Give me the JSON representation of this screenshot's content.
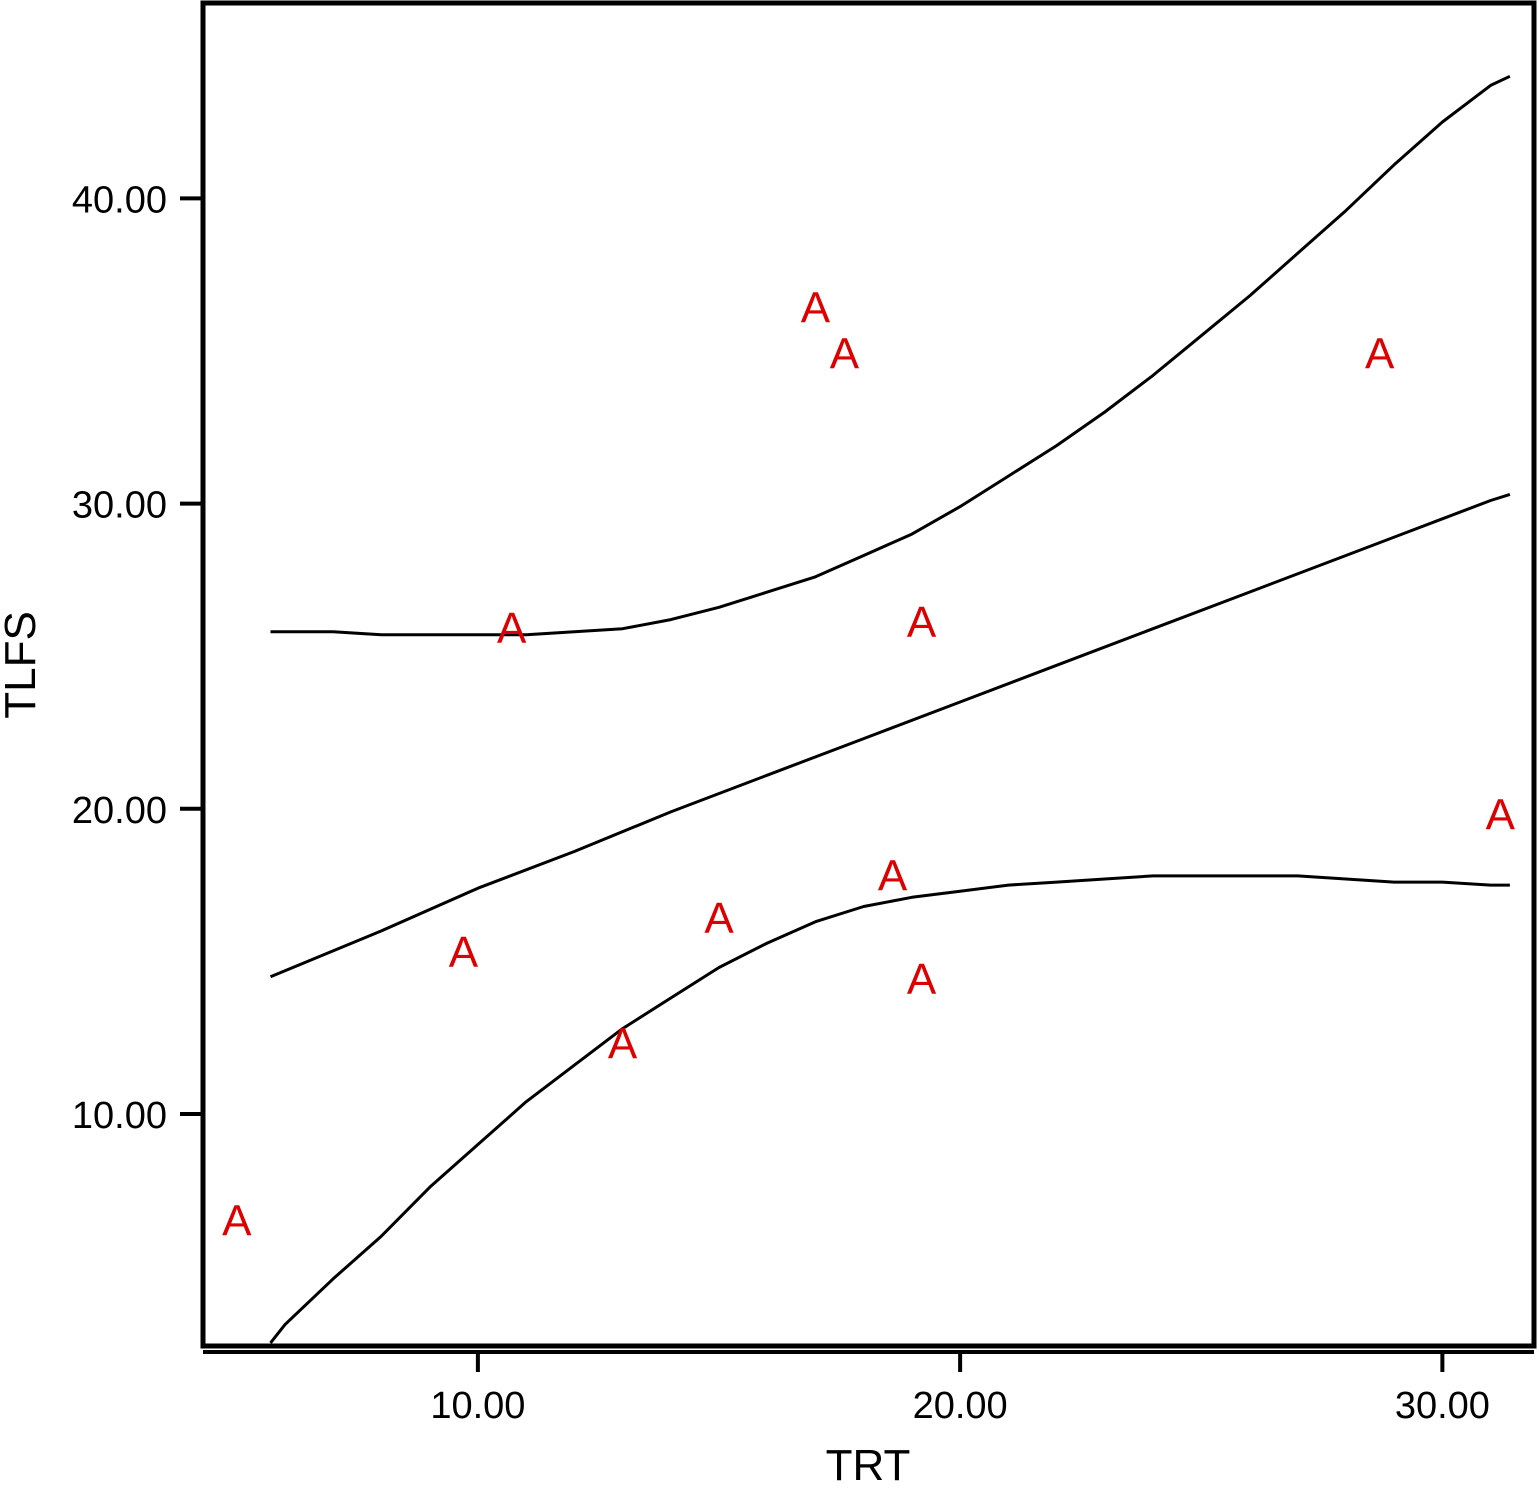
{
  "chart_data": {
    "type": "scatter",
    "xlabel": "TRT",
    "ylabel": "TLFS",
    "xlim": [
      4.3,
      31.9
    ],
    "ylim": [
      2.4,
      46.4
    ],
    "x_ticks": [
      {
        "value": 10,
        "label": "10.00"
      },
      {
        "value": 20,
        "label": "20.00"
      },
      {
        "value": 30,
        "label": "30.00"
      }
    ],
    "y_ticks": [
      {
        "value": 10,
        "label": "10.00"
      },
      {
        "value": 20,
        "label": "20.00"
      },
      {
        "value": 30,
        "label": "30.00"
      },
      {
        "value": 40,
        "label": "40.00"
      }
    ],
    "marker_label": "A",
    "marker_color": "#dd0000",
    "line_color": "#000000",
    "points": [
      {
        "x": 5.0,
        "y": 6.5
      },
      {
        "x": 9.7,
        "y": 15.3
      },
      {
        "x": 10.7,
        "y": 25.9
      },
      {
        "x": 13.0,
        "y": 12.3
      },
      {
        "x": 15.0,
        "y": 16.4
      },
      {
        "x": 17.0,
        "y": 36.4
      },
      {
        "x": 17.6,
        "y": 34.9
      },
      {
        "x": 18.6,
        "y": 17.8
      },
      {
        "x": 19.2,
        "y": 26.1
      },
      {
        "x": 19.2,
        "y": 14.4
      },
      {
        "x": 28.7,
        "y": 34.9
      },
      {
        "x": 31.2,
        "y": 19.8
      }
    ],
    "fit_line": {
      "x": [
        5.7,
        8,
        10,
        12,
        14,
        16,
        18,
        20,
        22,
        24,
        26,
        28,
        30,
        31.0,
        31.4
      ],
      "y": [
        14.5,
        16.0,
        17.4,
        18.6,
        19.9,
        21.1,
        22.3,
        23.5,
        24.7,
        25.9,
        27.1,
        28.3,
        29.5,
        30.1,
        30.3
      ]
    },
    "upper_band": {
      "x": [
        5.7,
        7,
        8,
        9,
        10,
        11,
        12,
        13,
        14,
        15,
        16,
        17,
        18,
        19,
        20,
        21,
        22,
        23,
        24,
        25,
        26,
        27,
        28,
        29,
        30,
        31,
        31.4
      ],
      "y": [
        25.8,
        25.8,
        25.7,
        25.7,
        25.7,
        25.7,
        25.8,
        25.9,
        26.2,
        26.6,
        27.1,
        27.6,
        28.3,
        29.0,
        29.9,
        30.9,
        31.9,
        33.0,
        34.2,
        35.5,
        36.8,
        38.2,
        39.6,
        41.1,
        42.5,
        43.7,
        44.0
      ]
    },
    "lower_band": {
      "x": [
        5.7,
        6,
        7,
        8,
        9,
        10,
        11,
        12,
        13,
        14,
        15,
        16,
        17,
        18,
        19,
        20,
        21,
        22,
        23,
        24,
        25,
        26,
        27,
        28,
        29,
        30,
        31,
        31.4
      ],
      "y": [
        2.5,
        3.1,
        4.6,
        6.0,
        7.6,
        9.0,
        10.4,
        11.6,
        12.8,
        13.8,
        14.8,
        15.6,
        16.3,
        16.8,
        17.1,
        17.3,
        17.5,
        17.6,
        17.7,
        17.8,
        17.8,
        17.8,
        17.8,
        17.7,
        17.6,
        17.6,
        17.5,
        17.5
      ]
    }
  }
}
